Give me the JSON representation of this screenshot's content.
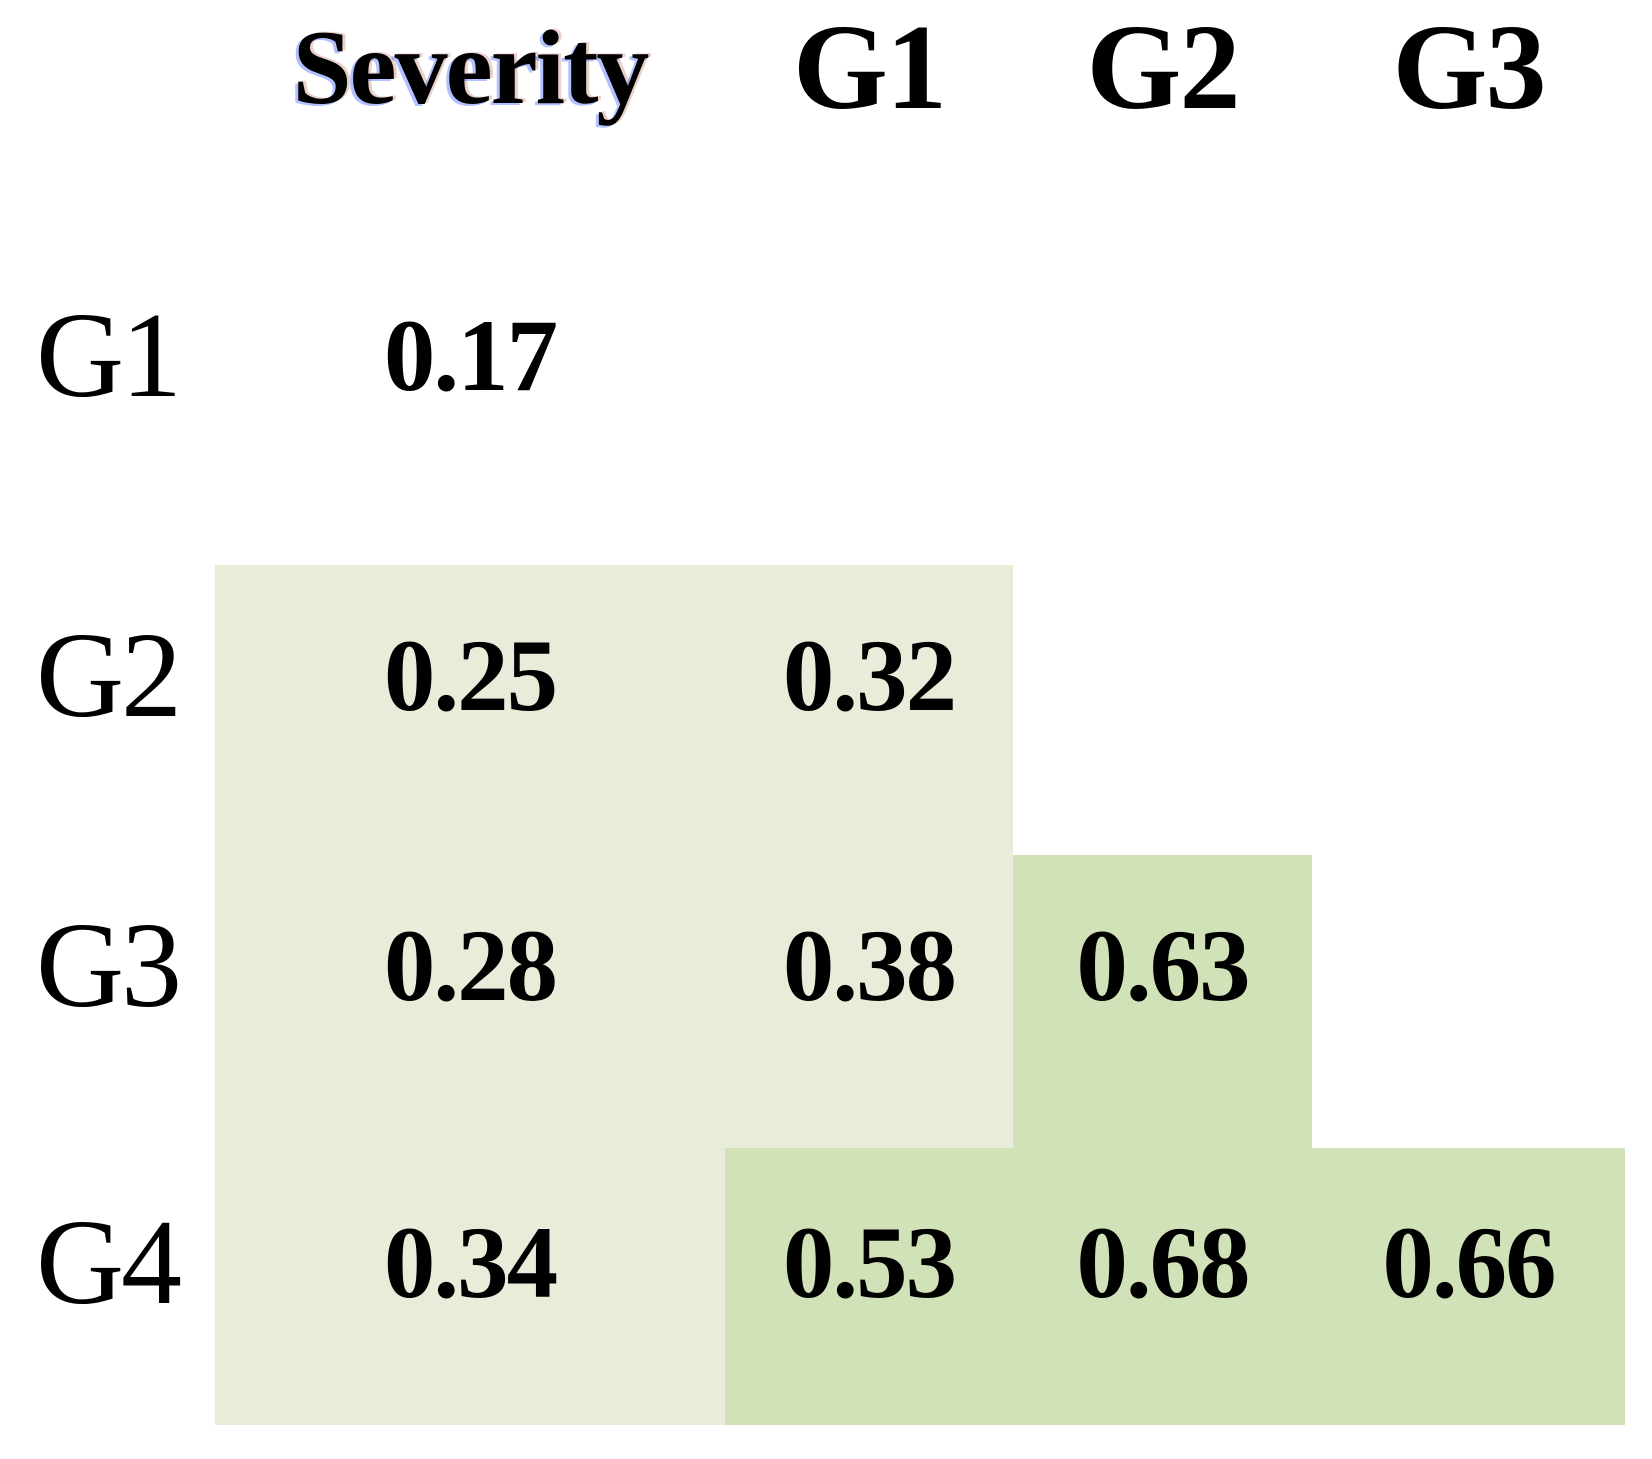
{
  "figure": {
    "kind": "correlation-matrix"
  },
  "matrix": {
    "columns": [
      "Severity",
      "G1",
      "G2",
      "G3"
    ],
    "rows": [
      {
        "label": "G1",
        "severity": "0.17",
        "g1": "",
        "g2": "",
        "g3": "",
        "shades": {
          "severity": "none",
          "g1": "none",
          "g2": "none",
          "g3": "none"
        }
      },
      {
        "label": "G2",
        "severity": "0.25",
        "g1": "0.32",
        "g2": "",
        "g3": "",
        "shades": {
          "severity": "light",
          "g1": "light",
          "g2": "none",
          "g3": "none"
        }
      },
      {
        "label": "G3",
        "severity": "0.28",
        "g1": "0.38",
        "g2": "0.63",
        "g3": "",
        "shades": {
          "severity": "light",
          "g1": "light",
          "g2": "medium",
          "g3": "none"
        }
      },
      {
        "label": "G4",
        "severity": "0.34",
        "g1": "0.53",
        "g2": "0.68",
        "g3": "0.66",
        "shades": {
          "severity": "light",
          "g1": "medium",
          "g2": "medium",
          "g3": "medium"
        }
      }
    ]
  },
  "colors": {
    "background": "#ffffff",
    "cell_light": "#e8edda",
    "cell_medium": "#d2e2b8",
    "text": "#000000"
  },
  "chart_data": {
    "type": "heatmap",
    "columns": [
      "Severity",
      "G1",
      "G2",
      "G3"
    ],
    "rows": [
      "G1",
      "G2",
      "G3",
      "G4"
    ],
    "values": [
      [
        0.17,
        null,
        null,
        null
      ],
      [
        0.25,
        0.32,
        null,
        null
      ],
      [
        0.28,
        0.38,
        0.63,
        null
      ],
      [
        0.34,
        0.53,
        0.68,
        0.66
      ]
    ],
    "cell_shading": [
      [
        "none",
        "none",
        "none",
        "none"
      ],
      [
        "light",
        "light",
        "none",
        "none"
      ],
      [
        "light",
        "light",
        "medium",
        "none"
      ],
      [
        "light",
        "medium",
        "medium",
        "medium"
      ]
    ],
    "title": "",
    "legend_position": "none",
    "grid": false
  }
}
